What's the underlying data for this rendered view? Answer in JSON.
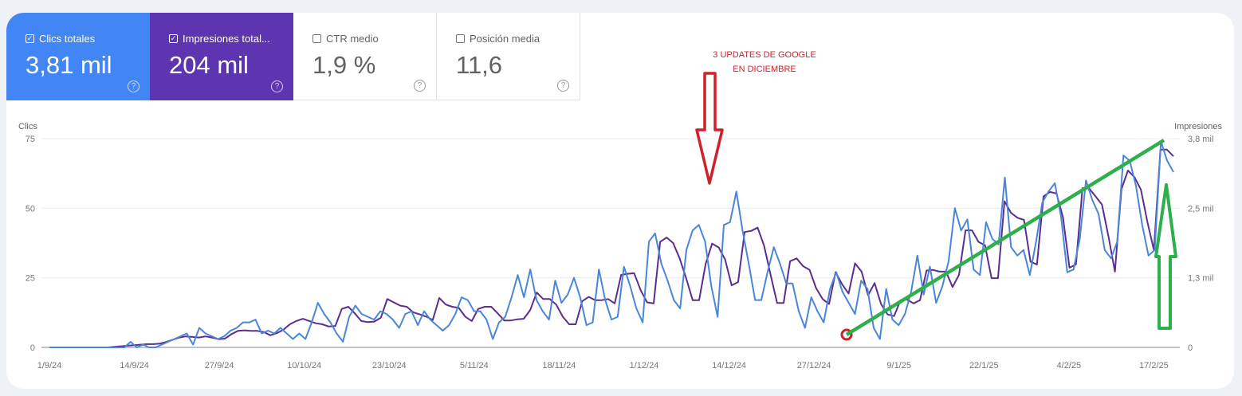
{
  "metrics": [
    {
      "id": "clicks",
      "label": "Clics totales",
      "value": "3,81 mil",
      "checked": true,
      "color": "#4285f4"
    },
    {
      "id": "impressions",
      "label": "Impresiones total...",
      "value": "204 mil",
      "checked": true,
      "color": "#5e35b1"
    },
    {
      "id": "ctr",
      "label": "CTR medio",
      "value": "1,9 %",
      "checked": false
    },
    {
      "id": "position",
      "label": "Posición media",
      "value": "11,6",
      "checked": false
    }
  ],
  "help_glyph": "?",
  "check_glyph": "✓",
  "annotation": {
    "line1": "3 UPDATES DE GOOGLE",
    "line2": "EN DICIEMBRE",
    "color": "#d0202a"
  },
  "trend_color": "#2db04b",
  "chart_data": {
    "type": "line",
    "title": "",
    "ylabel": "Clics",
    "ylabel_right": "Impresiones",
    "y_ticks": [
      "0",
      "25",
      "50",
      "75"
    ],
    "y_right_ticks": [
      "0",
      "1,3 mil",
      "2,5 mil",
      "3,8 mil"
    ],
    "ylim": [
      0,
      75
    ],
    "ylim_right": [
      0,
      3800
    ],
    "grid": true,
    "x_ticks": [
      "1/9/24",
      "14/9/24",
      "27/9/24",
      "10/10/24",
      "23/10/24",
      "5/11/24",
      "18/11/24",
      "1/12/24",
      "14/12/24",
      "27/12/24",
      "9/1/25",
      "22/1/25",
      "4/2/25",
      "17/2/25"
    ],
    "x_range": [
      "1/9/24",
      "20/2/25"
    ],
    "series": [
      {
        "name": "Clics totales",
        "color": "#4a86d8",
        "axis": "left",
        "values": [
          0,
          0,
          0,
          0,
          0,
          0,
          0,
          0,
          0,
          0,
          0,
          0,
          0,
          2,
          0,
          1,
          0,
          0,
          1,
          2,
          3,
          4,
          5,
          1,
          7,
          5,
          4,
          3,
          4,
          6,
          7,
          9,
          9,
          10,
          5,
          6,
          5,
          7,
          5,
          3,
          5,
          3,
          9,
          16,
          12,
          9,
          5,
          2,
          11,
          15,
          12,
          11,
          10,
          13,
          12,
          10,
          7,
          12,
          13,
          8,
          13,
          10,
          8,
          6,
          8,
          12,
          18,
          17,
          13,
          13,
          10,
          3,
          9,
          11,
          18,
          26,
          18,
          28,
          17,
          13,
          10,
          24,
          16,
          19,
          25,
          18,
          8,
          9,
          28,
          17,
          10,
          11,
          29,
          22,
          14,
          9,
          38,
          41,
          30,
          24,
          17,
          14,
          35,
          42,
          44,
          38,
          22,
          11,
          44,
          45,
          56,
          42,
          30,
          17,
          17,
          27,
          36,
          30,
          23,
          23,
          13,
          7,
          18,
          13,
          9,
          21,
          27,
          20,
          16,
          12,
          24,
          21,
          7,
          3,
          21,
          10,
          8,
          12,
          20,
          33,
          19,
          29,
          16,
          22,
          31,
          50,
          42,
          46,
          28,
          26,
          45,
          39,
          37,
          61,
          36,
          33,
          35,
          26,
          38,
          52,
          56,
          59,
          47,
          27,
          28,
          39,
          60,
          53,
          48,
          35,
          32,
          38,
          69,
          67,
          58,
          44,
          33,
          35,
          74,
          67,
          63
        ]
      },
      {
        "name": "Impresiones totales",
        "color": "#5b2d91",
        "axis": "right",
        "values": [
          0,
          0,
          0,
          0,
          0,
          0,
          0,
          0,
          0,
          0,
          10,
          20,
          30,
          40,
          50,
          60,
          60,
          70,
          100,
          140,
          180,
          200,
          190,
          180,
          200,
          180,
          150,
          160,
          240,
          300,
          310,
          300,
          300,
          280,
          220,
          260,
          320,
          420,
          480,
          520,
          480,
          440,
          420,
          380,
          390,
          700,
          740,
          620,
          480,
          460,
          470,
          540,
          880,
          820,
          760,
          740,
          640,
          600,
          560,
          500,
          900,
          780,
          740,
          720,
          560,
          480,
          700,
          740,
          740,
          620,
          490,
          490,
          510,
          520,
          680,
          1000,
          880,
          880,
          780,
          560,
          420,
          420,
          840,
          920,
          860,
          860,
          880,
          800,
          1320,
          1340,
          1350,
          1040,
          820,
          800,
          1920,
          2000,
          1900,
          1620,
          1260,
          860,
          860,
          1520,
          1890,
          1820,
          1600,
          1130,
          1190,
          2100,
          2120,
          2180,
          1850,
          1320,
          810,
          810,
          1570,
          1620,
          1480,
          1410,
          1080,
          880,
          790,
          1370,
          1150,
          980,
          1530,
          1380,
          950,
          1170,
          790,
          600,
          570,
          860,
          870,
          800,
          860,
          1400,
          1410,
          1380,
          1380,
          1100,
          1320,
          2130,
          2130,
          1920,
          1860,
          1260,
          1260,
          2660,
          2450,
          2360,
          2320,
          1560,
          1510,
          2750,
          2830,
          2800,
          2370,
          1450,
          1510,
          2900,
          2900,
          2750,
          2600,
          2020,
          1380,
          2880,
          3220,
          3100,
          2870,
          2280,
          1770,
          3600,
          3600,
          3480
        ]
      }
    ],
    "annotations": [
      {
        "type": "text",
        "text": "3 UPDATES DE GOOGLE EN DICIEMBRE",
        "color": "#d0202a"
      },
      {
        "type": "arrow-down",
        "color": "#d0202a",
        "target": "~10/12/24 peak"
      },
      {
        "type": "circle",
        "color": "#d0202a",
        "target": "~3/1/25 low"
      },
      {
        "type": "trend-line",
        "color": "#2db04b",
        "from": "~3/1/25",
        "to": "~19/2/25"
      },
      {
        "type": "arrow-up",
        "color": "#2db04b",
        "target": "~19/2/25"
      }
    ]
  }
}
